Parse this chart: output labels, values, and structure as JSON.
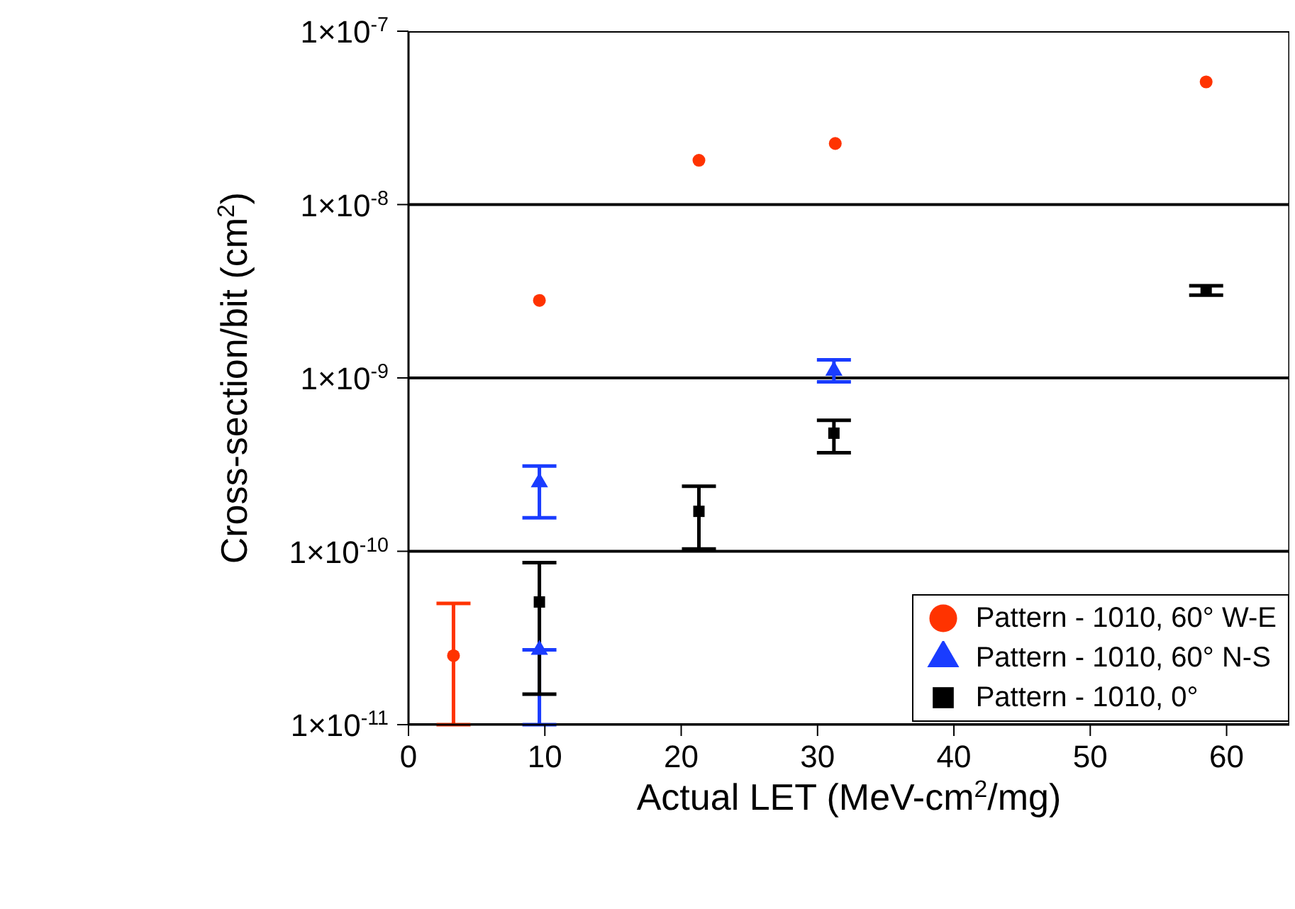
{
  "chart_data": {
    "type": "scatter",
    "xlabel": "Actual LET (MeV-cm$^{2}$/mg)",
    "ylabel": "Cross-section/bit (cm$^{2}$)",
    "xlim": [
      0,
      64.6
    ],
    "xticks": [
      0,
      10,
      20,
      30,
      40,
      50,
      60
    ],
    "ylim": [
      1e-11,
      1e-07
    ],
    "yticks": [
      {
        "value": 1e-11,
        "label": "1×10$^{-11}$"
      },
      {
        "value": 1e-10,
        "label": "1×10$^{-10}$"
      },
      {
        "value": 1e-09,
        "label": "1×10$^{-9}$"
      },
      {
        "value": 1e-08,
        "label": "1×10$^{-8}$"
      },
      {
        "value": 1e-07,
        "label": "1×10$^{-7}$"
      }
    ],
    "log": "y",
    "grid": "y",
    "legend": "bottom right",
    "series": [
      {
        "name": "Pattern - 1010, 60° W-E",
        "color": "#ff3300",
        "marker": "circle",
        "x": [
          3.3,
          9.6,
          21.3,
          31.3,
          58.5
        ],
        "values": [
          2.5e-11,
          2.8e-09,
          1.8e-08,
          2.25e-08,
          5.1e-08
        ],
        "errors": [
          [
            1e-11,
            5e-11
          ],
          null,
          null,
          null,
          null
        ]
      },
      {
        "name": "Pattern - 1010, 60° N-S",
        "color": "#1a3cff",
        "marker": "triangle",
        "x": [
          9.6,
          9.6,
          31.2
        ],
        "values": [
          2.5e-10,
          2.7e-11,
          1.1e-09
        ],
        "errors": [
          [
            1.56e-10,
            3.1e-10
          ],
          [
            1e-11,
            2.7e-11
          ],
          [
            9.5e-10,
            1.27e-09
          ]
        ]
      },
      {
        "name": "Pattern - 1010, 0°",
        "color": "#000000",
        "marker": "square",
        "x": [
          9.6,
          21.3,
          31.2,
          58.5
        ],
        "values": [
          5.1e-11,
          1.7e-10,
          4.8e-10,
          3.2e-09
        ],
        "errors": [
          [
            1.5e-11,
            8.6e-11
          ],
          [
            1.03e-10,
            2.37e-10
          ],
          [
            3.7e-10,
            5.7e-10
          ],
          [
            3e-09,
            3.4e-09
          ]
        ]
      }
    ]
  }
}
